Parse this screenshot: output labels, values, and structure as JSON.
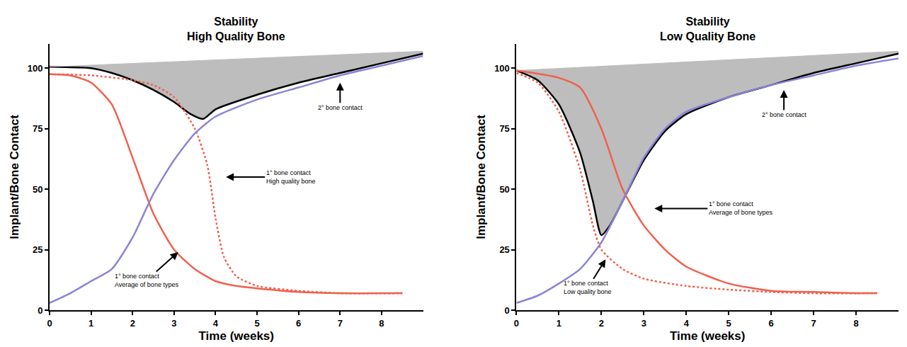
{
  "chart_data": [
    {
      "type": "line",
      "title": "Stability\nHigh Quality Bone",
      "x_label": "Time (weeks)",
      "y_label": "Implant/Bone Contact",
      "xlim": [
        0,
        9
      ],
      "xticks": [
        0,
        1,
        2,
        3,
        4,
        5,
        6,
        7,
        8
      ],
      "ylim": [
        0,
        110
      ],
      "yticks": [
        0,
        25,
        50,
        75,
        100
      ],
      "grid": false,
      "series": [
        {
          "color": "#000000",
          "line_style": "solid",
          "x": [
            0,
            1,
            1.5,
            2,
            2.5,
            3,
            3.4,
            3.7,
            4,
            5,
            6,
            7,
            8,
            9
          ],
          "values": [
            100.5,
            100,
            98,
            95,
            91,
            86,
            81,
            79,
            83,
            89,
            94,
            98,
            102,
            106
          ]
        },
        {
          "type": "area",
          "color": "#bdbdbd",
          "line_style": "solid",
          "x": [
            0,
            9
          ],
          "values": [
            100.5,
            107
          ]
        },
        {
          "color": "#f0604d",
          "line_style": "solid",
          "x": [
            0,
            0.5,
            1,
            1.5,
            2,
            2.5,
            3,
            3.5,
            4,
            4.5,
            5,
            6,
            7,
            8,
            8.5
          ],
          "values": [
            97.5,
            97,
            94,
            85,
            63,
            40,
            25,
            17,
            12,
            10,
            9,
            7.5,
            7,
            7,
            7
          ]
        },
        {
          "color": "#f0604d",
          "line_style": "dot",
          "x": [
            0,
            1,
            2,
            2.5,
            3,
            3.5,
            3.8,
            4,
            4.2,
            4.5,
            5,
            6,
            7,
            8.5
          ],
          "values": [
            97.5,
            97,
            95,
            93,
            88,
            75,
            60,
            38,
            22,
            14,
            10,
            8,
            7,
            7
          ]
        },
        {
          "color": "#8a84d6",
          "line_style": "solid",
          "x": [
            0,
            0.5,
            1,
            1.5,
            2,
            2.5,
            3,
            3.5,
            4,
            5,
            6,
            7,
            8,
            9
          ],
          "values": [
            3,
            7,
            12,
            17,
            30,
            48,
            62,
            73,
            80,
            87,
            92,
            97,
            101,
            105
          ]
        }
      ],
      "annotations": [
        {
          "text": "1° bone contact\nHigh quality bone",
          "x": 4.25,
          "y": 55
        },
        {
          "text": "1° bone contact\nAverage of bone types",
          "x": 3.1,
          "y": 24
        },
        {
          "text": "2° bone contact",
          "x": 7,
          "y": 94
        }
      ]
    },
    {
      "type": "line",
      "title": "Stability\nLow Quality Bone",
      "x_label": "Time (weeks)",
      "y_label": "Implant/Bone Contact",
      "xlim": [
        0,
        9
      ],
      "xticks": [
        0,
        1,
        2,
        3,
        4,
        5,
        6,
        7,
        8
      ],
      "ylim": [
        0,
        110
      ],
      "yticks": [
        0,
        25,
        50,
        75,
        100
      ],
      "grid": false,
      "series": [
        {
          "color": "#000000",
          "line_style": "solid",
          "x": [
            0,
            0.5,
            1,
            1.5,
            1.8,
            2,
            2.2,
            2.5,
            3,
            3.5,
            4,
            5,
            6,
            7,
            8,
            9
          ],
          "values": [
            99,
            95,
            85,
            65,
            45,
            31,
            35,
            45,
            62,
            74,
            81,
            88,
            93,
            98,
            102,
            106
          ]
        },
        {
          "type": "area",
          "color": "#bdbdbd",
          "line_style": "solid",
          "x": [
            0,
            9
          ],
          "values": [
            99,
            107
          ]
        },
        {
          "color": "#f0604d",
          "line_style": "solid",
          "x": [
            0,
            1,
            1.5,
            2,
            2.5,
            3,
            3.5,
            4,
            5,
            6,
            7,
            8,
            8.5
          ],
          "values": [
            99,
            96,
            92,
            75,
            50,
            35,
            25,
            18,
            11,
            8,
            7.5,
            7,
            7
          ]
        },
        {
          "color": "#f0604d",
          "line_style": "dot",
          "x": [
            0,
            0.5,
            1,
            1.5,
            1.8,
            2,
            2.5,
            3,
            4,
            5,
            6,
            7,
            8.5
          ],
          "values": [
            98,
            94,
            82,
            58,
            35,
            25,
            17,
            13,
            10,
            8.5,
            7.5,
            7,
            7
          ]
        },
        {
          "color": "#8a84d6",
          "line_style": "solid",
          "x": [
            0,
            0.5,
            1,
            1.5,
            2,
            2.5,
            3,
            3.5,
            4,
            5,
            6,
            7,
            8,
            9
          ],
          "values": [
            3,
            6,
            11,
            17,
            28,
            45,
            63,
            75,
            82,
            88,
            93,
            97,
            101,
            104
          ]
        }
      ],
      "annotations": [
        {
          "text": "1° bone contact\nAverage of bone types",
          "x": 3.25,
          "y": 42
        },
        {
          "text": "1° bone contact\nLow quality bone",
          "x": 2.1,
          "y": 21
        },
        {
          "text": "2° bone contact",
          "x": 6.3,
          "y": 91
        }
      ]
    }
  ]
}
